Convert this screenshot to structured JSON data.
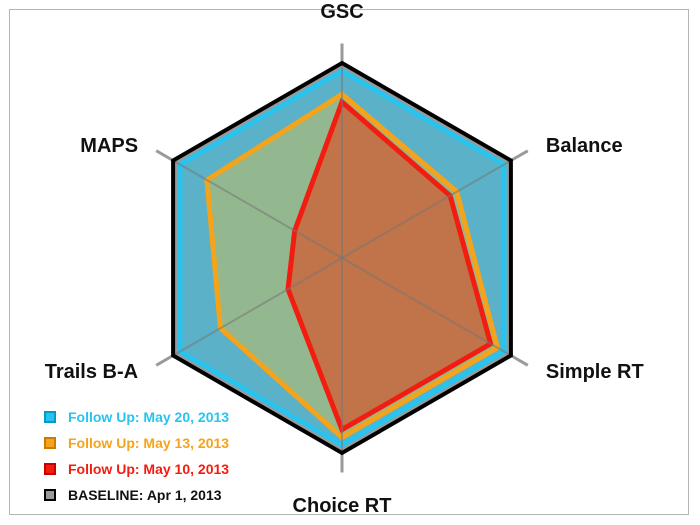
{
  "chart_data": {
    "type": "radar",
    "title": "",
    "axes": [
      "GSC",
      "Balance",
      "Simple RT",
      "Choice RT",
      "Trails B-A",
      "MAPS"
    ],
    "range": [
      0,
      1
    ],
    "grid": "spokes",
    "legend_position": "bottom-left",
    "series": [
      {
        "name": "BASELINE: Apr 1, 2013",
        "color": "#999999",
        "values": [
          1.0,
          1.0,
          1.0,
          1.0,
          1.0,
          1.0
        ]
      },
      {
        "name": "Follow Up: May 20, 2013",
        "color": "#27c4ef",
        "values": [
          0.96,
          0.96,
          0.96,
          0.96,
          0.96,
          0.96
        ]
      },
      {
        "name": "Follow Up: May 13, 2013",
        "color": "#f5a31a",
        "values": [
          0.84,
          0.68,
          0.92,
          0.92,
          0.72,
          0.8
        ]
      },
      {
        "name": "Follow Up: May 10, 2013",
        "color": "#f21d10",
        "values": [
          0.8,
          0.64,
          0.88,
          0.88,
          0.32,
          0.28
        ]
      }
    ]
  },
  "legend": {
    "items": [
      {
        "label": "Follow Up: May 20, 2013",
        "color": "#27c4ef",
        "text_color": "#27c4ef"
      },
      {
        "label": "Follow Up: May 13, 2013",
        "color": "#f5a31a",
        "text_color": "#f5a31a"
      },
      {
        "label": "Follow Up: May 10, 2013",
        "color": "#f21d10",
        "text_color": "#f21d10"
      },
      {
        "label": "BASELINE: Apr 1, 2013",
        "color": "#999999",
        "text_color": "#111111"
      }
    ]
  }
}
